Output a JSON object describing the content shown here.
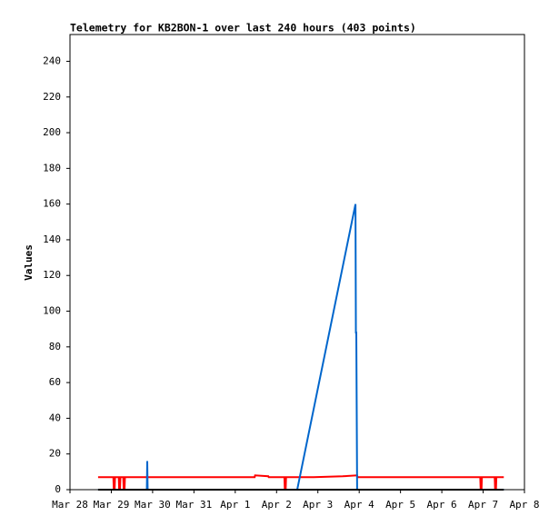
{
  "chart_data": {
    "type": "line",
    "title": "Telemetry for KB2BON-1 over last 240 hours (403 points)",
    "y_label": "Values",
    "xlim": [
      0,
      11
    ],
    "xticks": [
      {
        "value": 0,
        "label": "Mar 28"
      },
      {
        "value": 1,
        "label": "Mar 29"
      },
      {
        "value": 2,
        "label": "Mar 30"
      },
      {
        "value": 3,
        "label": "Mar 31"
      },
      {
        "value": 4,
        "label": "Apr 1"
      },
      {
        "value": 5,
        "label": "Apr 2"
      },
      {
        "value": 6,
        "label": "Apr 3"
      },
      {
        "value": 7,
        "label": "Apr 4"
      },
      {
        "value": 8,
        "label": "Apr 5"
      },
      {
        "value": 9,
        "label": "Apr 6"
      },
      {
        "value": 10,
        "label": "Apr 7"
      },
      {
        "value": 11,
        "label": "Apr 8"
      }
    ],
    "ylim": [
      0,
      255
    ],
    "yticks": [
      0,
      20,
      40,
      60,
      80,
      100,
      120,
      140,
      160,
      180,
      200,
      220,
      240
    ],
    "series": [
      {
        "color": "#ff0000",
        "x": [
          0.68,
          1.05,
          1.06,
          1.08,
          1.09,
          1.18,
          1.19,
          1.21,
          1.22,
          1.29,
          1.3,
          1.32,
          1.33,
          4.47,
          4.48,
          4.8,
          4.81,
          5.19,
          5.2,
          5.22,
          5.23,
          5.9,
          6.6,
          6.95,
          6.96,
          9.93,
          9.94,
          9.96,
          9.97,
          10.28,
          10.29,
          10.31,
          10.32,
          10.5
        ],
        "values": [
          7,
          7,
          0,
          0,
          7,
          7,
          0,
          0,
          7,
          7,
          0,
          0,
          7,
          7,
          8,
          7.5,
          7,
          7,
          0,
          0,
          7,
          7,
          7.5,
          8,
          7,
          7,
          0,
          0,
          7,
          7,
          0,
          0,
          7,
          7
        ]
      },
      {
        "color": "#0066cc",
        "x": [
          0.68,
          1.86,
          1.87,
          1.88,
          5.5,
          6.91,
          6.92,
          6.93,
          6.95,
          10.5
        ],
        "values": [
          0,
          0,
          16,
          0,
          0,
          160,
          88,
          88,
          0,
          0
        ]
      },
      {
        "color": "#000000",
        "x": [
          0.68,
          10.5
        ],
        "values": [
          0,
          0
        ]
      }
    ]
  }
}
